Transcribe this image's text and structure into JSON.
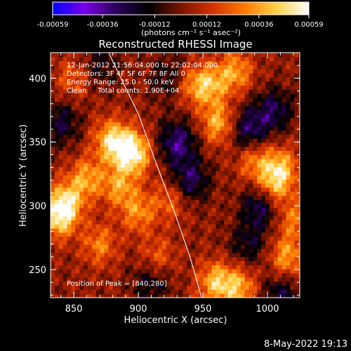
{
  "chart_data": {
    "type": "heatmap",
    "title": "Reconstructed RHESSI Image",
    "xlabel": "Heliocentric X (arcsec)",
    "ylabel": "Heliocentric Y (arcsec)",
    "xlim": [
      832,
      1025
    ],
    "ylim": [
      228,
      420
    ],
    "x_ticks": [
      "850",
      "900",
      "950",
      "1000"
    ],
    "y_ticks": [
      "250",
      "300",
      "350",
      "400"
    ],
    "colorbar": {
      "ticks": [
        "-0.00059",
        "-0.00036",
        "-0.00012",
        "0.00012",
        "0.00036",
        "0.00059"
      ],
      "unit_label": "(photons cm⁻² s⁻¹ asec⁻²)",
      "range": [
        -0.00059,
        0.00059
      ],
      "colormap": [
        "#0000ff",
        "#7b00e8",
        "#2a0059",
        "#000000",
        "#7a1400",
        "#d43200",
        "#ff7a00",
        "#ffd24a",
        "#ffffff"
      ]
    },
    "annotations": [
      "12-Jan-2012 21:56:04.000 to 22:02:04.000",
      "Detectors: 3F 4F 5F 6F 7F 8F All 0",
      "Energy Range: 25.0 - 50.0 keV",
      "Clean     Total counts: 1.90E+04"
    ],
    "peak_label": "Position of Peak = [840,280]",
    "peak": [
      840,
      280
    ],
    "limb_arc_points": [
      [
        877,
        420
      ],
      [
        900,
        372
      ],
      [
        915,
        330
      ],
      [
        928,
        295
      ],
      [
        940,
        260
      ],
      [
        949,
        228
      ]
    ],
    "bright_regions": [
      {
        "x": 844,
        "y": 303,
        "intensity": 1.0
      },
      {
        "x": 838,
        "y": 290,
        "intensity": 0.95
      },
      {
        "x": 860,
        "y": 322,
        "intensity": 0.8
      },
      {
        "x": 878,
        "y": 352,
        "intensity": 0.85
      },
      {
        "x": 890,
        "y": 345,
        "intensity": 0.9
      },
      {
        "x": 885,
        "y": 315,
        "intensity": 0.75
      },
      {
        "x": 900,
        "y": 295,
        "intensity": 0.7
      },
      {
        "x": 870,
        "y": 270,
        "intensity": 0.65
      },
      {
        "x": 898,
        "y": 340,
        "intensity": 0.8
      },
      {
        "x": 955,
        "y": 395,
        "intensity": 0.85
      },
      {
        "x": 975,
        "y": 405,
        "intensity": 0.8
      },
      {
        "x": 962,
        "y": 365,
        "intensity": 0.9
      },
      {
        "x": 940,
        "y": 395,
        "intensity": 0.6
      },
      {
        "x": 1010,
        "y": 330,
        "intensity": 0.85
      },
      {
        "x": 1005,
        "y": 315,
        "intensity": 0.8
      },
      {
        "x": 990,
        "y": 335,
        "intensity": 0.65
      },
      {
        "x": 960,
        "y": 240,
        "intensity": 0.95
      },
      {
        "x": 978,
        "y": 236,
        "intensity": 0.85
      },
      {
        "x": 1015,
        "y": 260,
        "intensity": 0.8
      },
      {
        "x": 1020,
        "y": 290,
        "intensity": 0.6
      },
      {
        "x": 925,
        "y": 305,
        "intensity": 0.55
      },
      {
        "x": 850,
        "y": 400,
        "intensity": 0.5
      },
      {
        "x": 915,
        "y": 260,
        "intensity": 0.5
      }
    ],
    "dark_regions": [
      {
        "x": 930,
        "y": 350,
        "intensity": 1.0
      },
      {
        "x": 940,
        "y": 320,
        "intensity": 0.9
      },
      {
        "x": 985,
        "y": 360,
        "intensity": 0.9
      },
      {
        "x": 1005,
        "y": 375,
        "intensity": 0.8
      },
      {
        "x": 995,
        "y": 300,
        "intensity": 0.9
      },
      {
        "x": 840,
        "y": 365,
        "intensity": 0.7
      },
      {
        "x": 925,
        "y": 400,
        "intensity": 0.6
      },
      {
        "x": 1010,
        "y": 230,
        "intensity": 0.7
      },
      {
        "x": 910,
        "y": 240,
        "intensity": 0.6
      },
      {
        "x": 870,
        "y": 410,
        "intensity": 0.5
      },
      {
        "x": 985,
        "y": 270,
        "intensity": 0.6
      }
    ]
  },
  "footer": {
    "timestamp": "8-May-2022 19:13"
  }
}
